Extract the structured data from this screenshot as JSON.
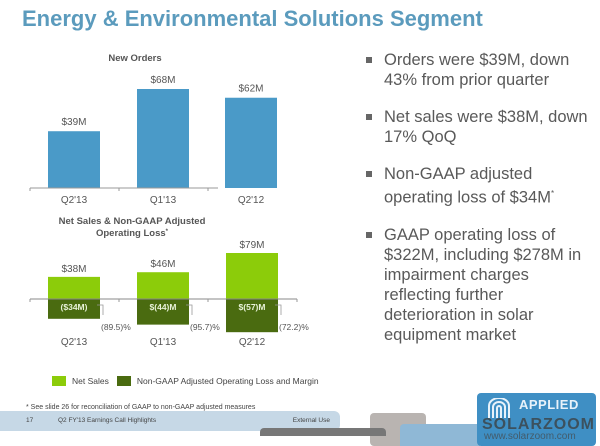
{
  "page": {
    "title": "Energy & Environmental Solutions Segment"
  },
  "chart_data": [
    {
      "type": "bar",
      "title": "New Orders",
      "categories": [
        "Q2'13",
        "Q1'13",
        "Q2'12"
      ],
      "values": [
        39,
        68,
        62
      ],
      "value_labels": [
        "$39M",
        "$68M",
        "$62M"
      ],
      "unit": "$M",
      "color": "#4a9ac8",
      "ylim": [
        0,
        70
      ],
      "grid": false
    },
    {
      "type": "bar",
      "title": "Net Sales & Non-GAAP Adjusted Operating Loss",
      "title_line1": "Net Sales & Non-GAAP Adjusted",
      "title_line2": "Operating Loss",
      "title_mark": "*",
      "categories": [
        "Q2'13",
        "Q1'13",
        "Q2'12"
      ],
      "series": [
        {
          "name": "Net Sales",
          "values": [
            38,
            46,
            79
          ],
          "value_labels": [
            "$38M",
            "$46M",
            "$79M"
          ],
          "color": "#8ccc0a"
        },
        {
          "name": "Non-GAAP Adjusted Operating Loss and Margin",
          "values": [
            -34,
            -44,
            -57
          ],
          "value_labels": [
            "($34M)",
            "$(44)M",
            "$(57)M"
          ],
          "margins": [
            "(89.5)%",
            "(95.7)%",
            "(72.2)%"
          ],
          "color": "#4a6b10"
        }
      ],
      "unit": "$M",
      "ylim": [
        -60,
        80
      ],
      "grid": false,
      "legend_position": "bottom"
    }
  ],
  "bullets": [
    {
      "text": "Orders were $39M, down 43% from prior quarter"
    },
    {
      "text": "Net sales were $38M, down 17% QoQ"
    },
    {
      "text": "Non-GAAP adjusted operating loss of $34M",
      "mark": "*"
    },
    {
      "text": "GAAP operating loss of $322M, including $278M in impairment charges reflecting further deterioration in solar equipment market"
    }
  ],
  "legend": {
    "net_sales": "Net Sales",
    "op_loss": "Non-GAAP Adjusted Operating Loss and Margin"
  },
  "footnote": "* See slide 26 for reconciliation of GAAP to non-GAAP adjusted measures",
  "footer": {
    "page_number": "17",
    "deck_name": "Q2 FY'13 Earnings Call Highlights",
    "classification": "External Use"
  },
  "logo": {
    "text": "APPLIED",
    "watermark": "SOLARZOOM",
    "watermark_url": "www.solarzoom.com"
  }
}
